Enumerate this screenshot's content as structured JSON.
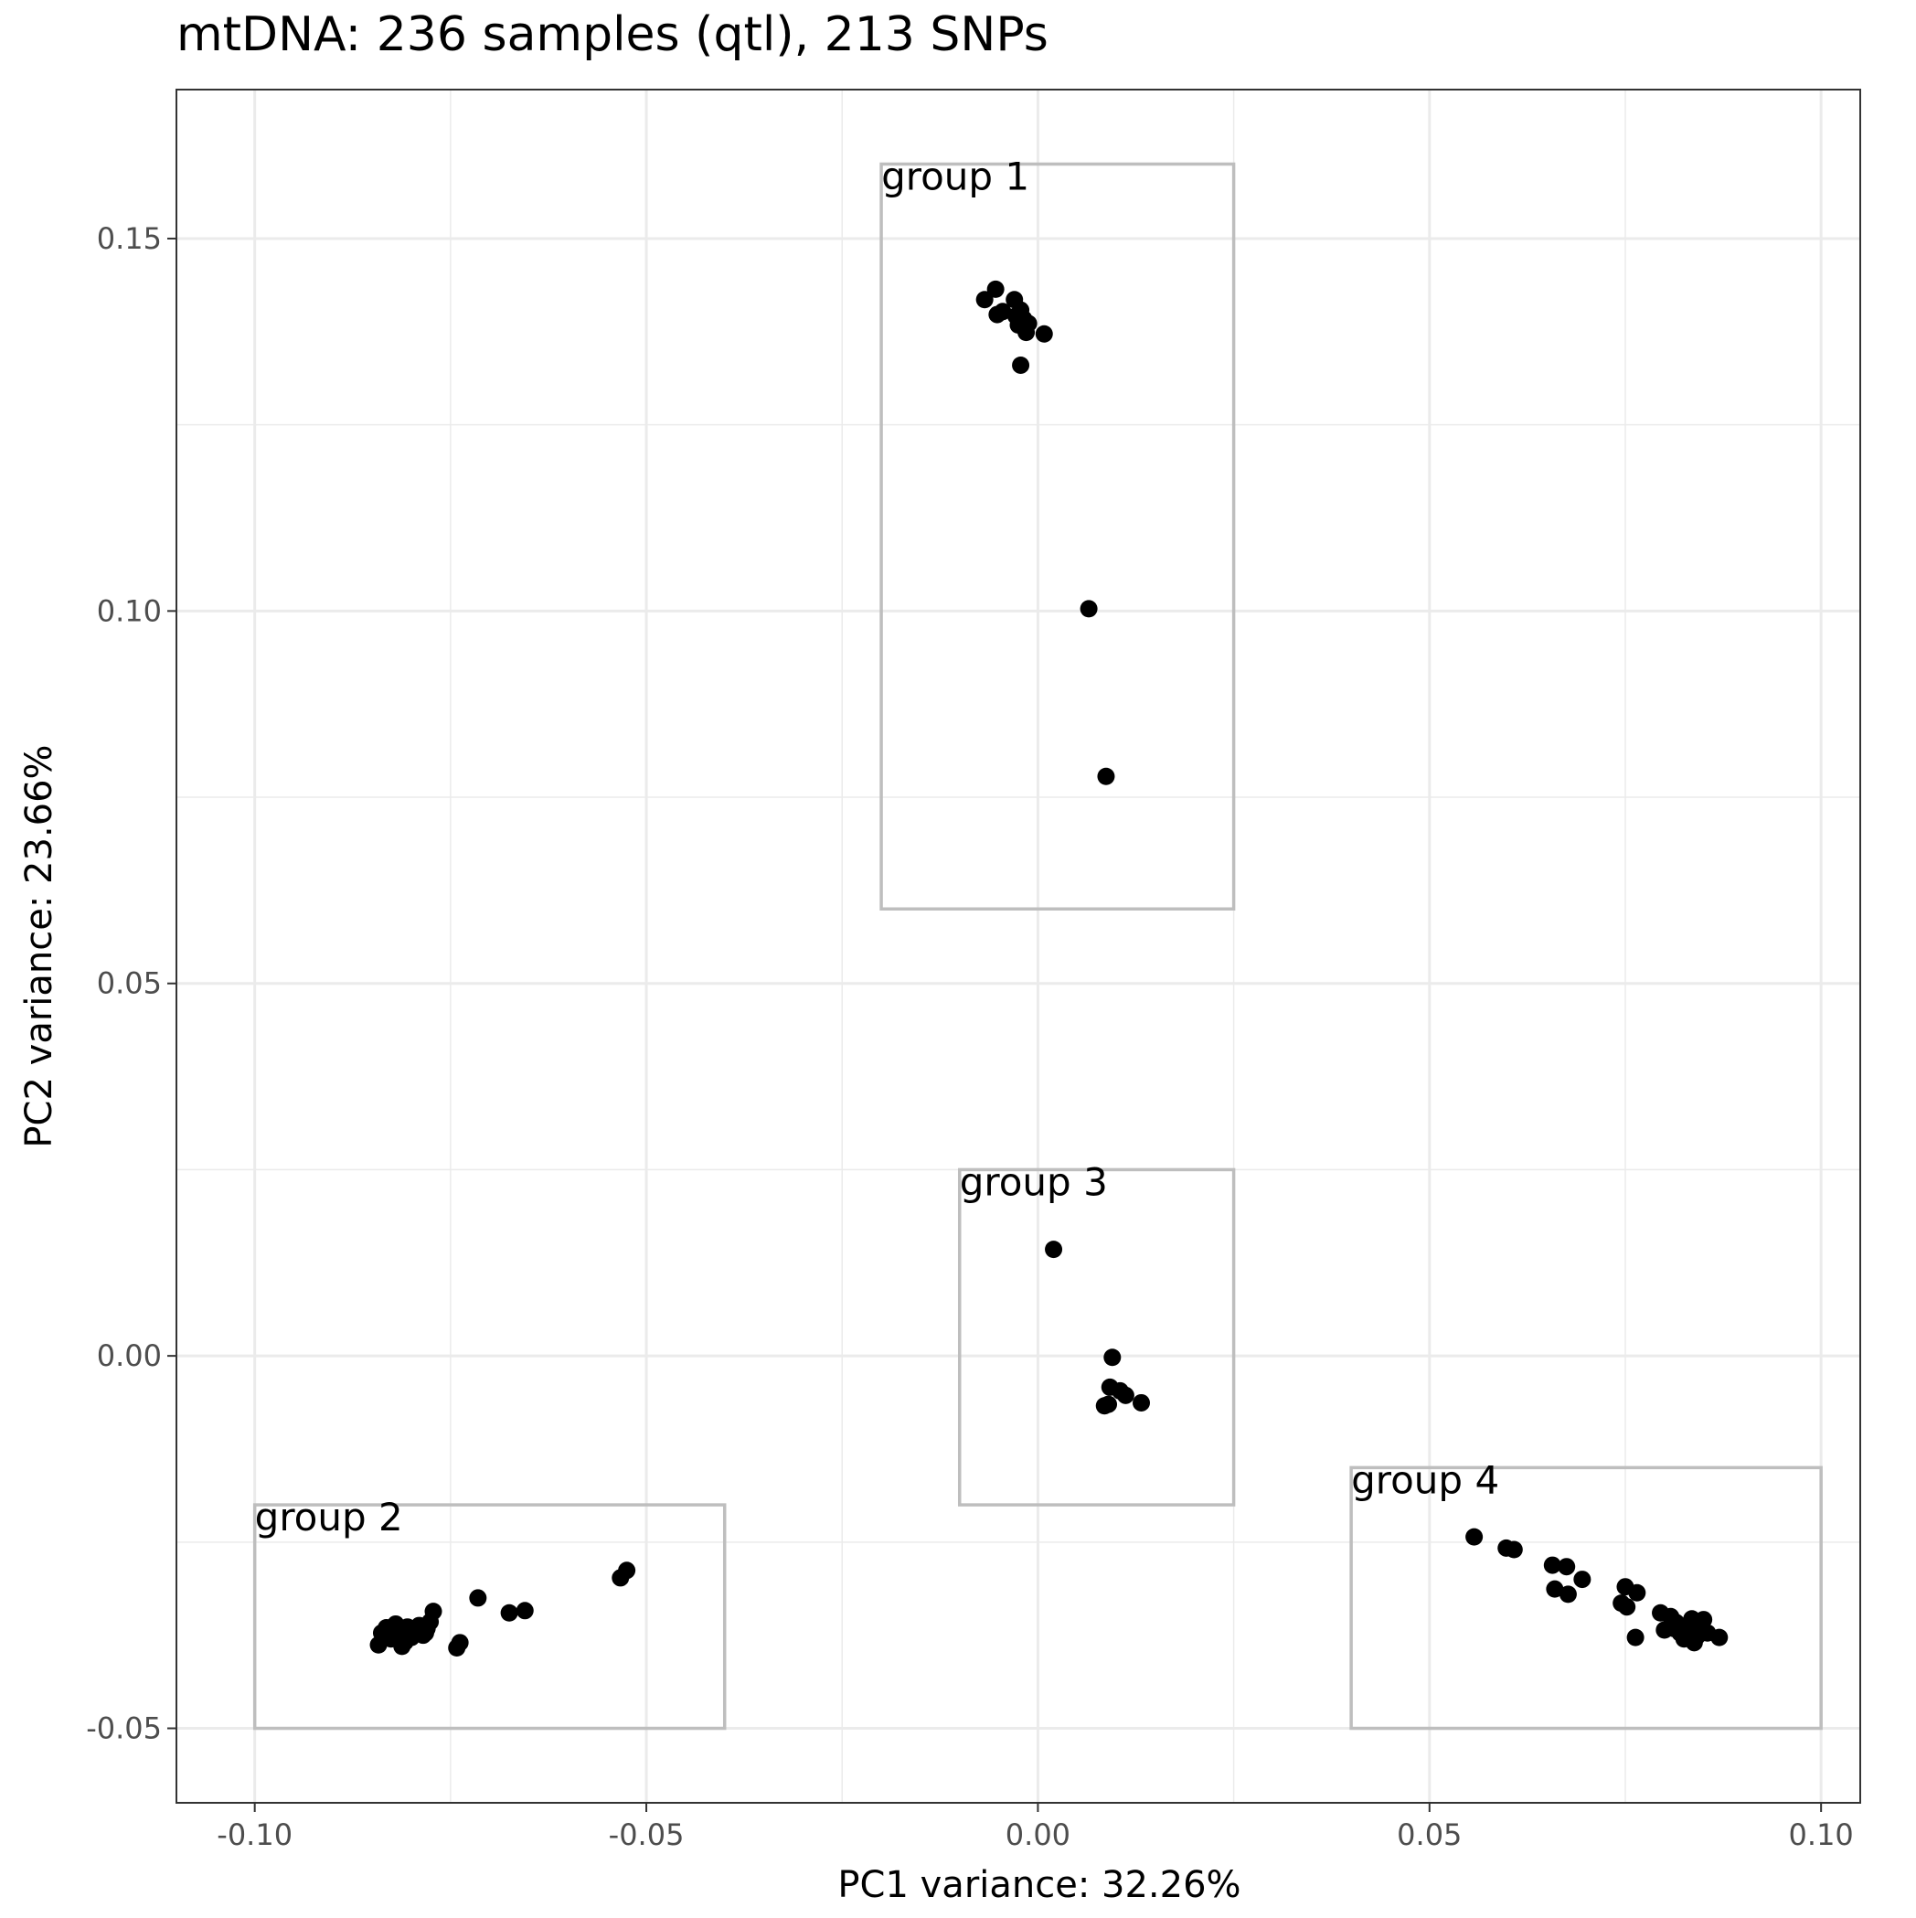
{
  "chart_data": {
    "type": "scatter",
    "title": "mtDNA: 236 samples (qtl), 213 SNPs",
    "xlabel": "PC1 variance: 32.26%",
    "ylabel": "PC2 variance: 23.66%",
    "xlim": [
      -0.11,
      0.105
    ],
    "ylim": [
      -0.06,
      0.17
    ],
    "x_ticks": [
      -0.1,
      -0.05,
      0.0,
      0.05,
      0.1
    ],
    "x_tick_labels": [
      "-0.10",
      "-0.05",
      "0.00",
      "0.05",
      "0.10"
    ],
    "y_ticks": [
      -0.05,
      0.0,
      0.05,
      0.1,
      0.15
    ],
    "y_tick_labels": [
      "-0.05",
      "0.00",
      "0.05",
      "0.10",
      "0.15"
    ],
    "grid": true,
    "legend": "none",
    "point_color": "#000000",
    "box_color": "#bebebe",
    "groups": [
      {
        "label": "group 1",
        "xmin": -0.02,
        "xmax": 0.025,
        "ymin": 0.06,
        "ymax": 0.16
      },
      {
        "label": "group 2",
        "xmin": -0.1,
        "xmax": -0.04,
        "ymin": -0.05,
        "ymax": -0.02
      },
      {
        "label": "group 3",
        "xmin": -0.01,
        "xmax": 0.025,
        "ymin": -0.02,
        "ymax": 0.025
      },
      {
        "label": "group 4",
        "xmin": 0.04,
        "xmax": 0.1,
        "ymin": -0.05,
        "ymax": -0.015
      }
    ],
    "points": [
      [
        -0.0068,
        0.1418
      ],
      [
        -0.0054,
        0.1432
      ],
      [
        -0.0052,
        0.1398
      ],
      [
        -0.0045,
        0.1402
      ],
      [
        -0.003,
        0.1418
      ],
      [
        -0.0028,
        0.1396
      ],
      [
        -0.0022,
        0.1404
      ],
      [
        -0.0025,
        0.1384
      ],
      [
        -0.0018,
        0.1392
      ],
      [
        -0.0012,
        0.1386
      ],
      [
        -0.0015,
        0.1374
      ],
      [
        0.0008,
        0.1372
      ],
      [
        -0.0022,
        0.133
      ],
      [
        0.0065,
        0.1003
      ],
      [
        0.0087,
        0.0778
      ],
      [
        0.002,
        0.0143
      ],
      [
        0.0095,
        -0.0002
      ],
      [
        0.0092,
        -0.0042
      ],
      [
        0.0105,
        -0.0047
      ],
      [
        0.0112,
        -0.0053
      ],
      [
        0.0132,
        -0.0063
      ],
      [
        0.0085,
        -0.0067
      ],
      [
        0.009,
        -0.0065
      ],
      [
        -0.0842,
        -0.0388
      ],
      [
        -0.0838,
        -0.0372
      ],
      [
        -0.0832,
        -0.0365
      ],
      [
        -0.0826,
        -0.038
      ],
      [
        -0.082,
        -0.036
      ],
      [
        -0.0815,
        -0.0373
      ],
      [
        -0.0812,
        -0.039
      ],
      [
        -0.0808,
        -0.0384
      ],
      [
        -0.0805,
        -0.0364
      ],
      [
        -0.08,
        -0.0378
      ],
      [
        -0.0795,
        -0.037
      ],
      [
        -0.079,
        -0.0362
      ],
      [
        -0.0785,
        -0.0375
      ],
      [
        -0.078,
        -0.0366
      ],
      [
        -0.0776,
        -0.0357
      ],
      [
        -0.0772,
        -0.0343
      ],
      [
        -0.0782,
        -0.0372
      ],
      [
        -0.0825,
        -0.0378
      ],
      [
        -0.081,
        -0.037
      ],
      [
        -0.0742,
        -0.0392
      ],
      [
        -0.0738,
        -0.0385
      ],
      [
        -0.0715,
        -0.0325
      ],
      [
        -0.0675,
        -0.0345
      ],
      [
        -0.0655,
        -0.0342
      ],
      [
        -0.0533,
        -0.0298
      ],
      [
        -0.0525,
        -0.0288
      ],
      [
        0.0557,
        -0.0243
      ],
      [
        0.0598,
        -0.0258
      ],
      [
        0.0608,
        -0.026
      ],
      [
        0.0657,
        -0.0281
      ],
      [
        0.0675,
        -0.0283
      ],
      [
        0.066,
        -0.0313
      ],
      [
        0.0677,
        -0.032
      ],
      [
        0.0695,
        -0.03
      ],
      [
        0.075,
        -0.031
      ],
      [
        0.0765,
        -0.0318
      ],
      [
        0.0745,
        -0.0332
      ],
      [
        0.0752,
        -0.0337
      ],
      [
        0.0763,
        -0.0378
      ],
      [
        0.0795,
        -0.0345
      ],
      [
        0.0808,
        -0.035
      ],
      [
        0.0815,
        -0.0358
      ],
      [
        0.08,
        -0.0368
      ],
      [
        0.082,
        -0.0372
      ],
      [
        0.0825,
        -0.038
      ],
      [
        0.083,
        -0.0364
      ],
      [
        0.0835,
        -0.0353
      ],
      [
        0.084,
        -0.0362
      ],
      [
        0.0845,
        -0.037
      ],
      [
        0.085,
        -0.0354
      ],
      [
        0.0855,
        -0.0372
      ],
      [
        0.0838,
        -0.0385
      ],
      [
        0.0828,
        -0.0378
      ],
      [
        0.087,
        -0.0378
      ],
      [
        0.0812,
        -0.0366
      ],
      [
        0.0842,
        -0.0376
      ]
    ]
  }
}
